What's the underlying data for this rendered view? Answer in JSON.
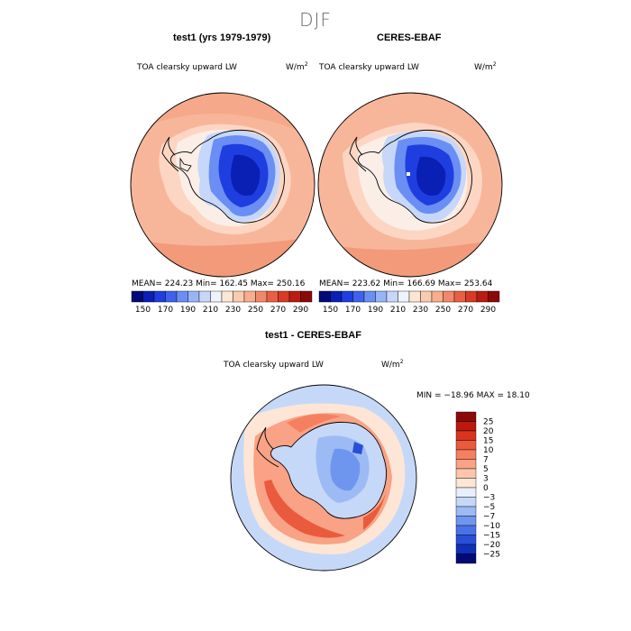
{
  "season": "DJF",
  "panels": [
    {
      "title": "test1 (yrs 1979-1979)",
      "variable": "TOA clearsky upward LW",
      "units_base": "W/m",
      "units_exp": "2",
      "stats": "MEAN= 224.23   Min= 162.45   Max= 250.16",
      "mean": 224.23,
      "min": 162.45,
      "max": 250.16
    },
    {
      "title": "CERES-EBAF",
      "variable": "TOA clearsky upward LW",
      "units_base": "W/m",
      "units_exp": "2",
      "stats": "MEAN= 223.62   Min= 166.69   Max= 253.64",
      "mean": 223.62,
      "min": 166.69,
      "max": 253.64
    }
  ],
  "abs_colorbar": {
    "labels": [
      "150",
      "170",
      "190",
      "210",
      "230",
      "250",
      "270",
      "290"
    ],
    "colors": [
      "#020a76",
      "#0a1fb4",
      "#1f3ee0",
      "#3f62ee",
      "#6a8ef3",
      "#97b4f6",
      "#c6d7fa",
      "#eef2fc",
      "#fde6d4",
      "#fbcbae",
      "#f8ad8c",
      "#f2886a",
      "#e85f44",
      "#d83a24",
      "#ba1d10",
      "#8b0907"
    ]
  },
  "diff": {
    "title": "test1 - CERES-EBAF",
    "variable": "TOA clearsky upward LW",
    "units_base": "W/m",
    "units_exp": "2",
    "stats": "MIN = −18.96  MAX =   18.10",
    "min": -18.96,
    "max": 18.1,
    "colorbar": {
      "labels": [
        "25",
        "20",
        "15",
        "10",
        "7",
        "5",
        "3",
        "0",
        "−3",
        "−5",
        "−7",
        "−10",
        "−15",
        "−20",
        "−25"
      ],
      "colors": [
        "#8b0907",
        "#ba1a0e",
        "#d9341f",
        "#ea5a3d",
        "#f5805f",
        "#f9a285",
        "#fbc6ad",
        "#fde6d6",
        "#e8effb",
        "#c6d8f8",
        "#9cbaf4",
        "#6f96ef",
        "#4a72e8",
        "#2a4ed8",
        "#1030b8",
        "#020a76"
      ]
    }
  }
}
